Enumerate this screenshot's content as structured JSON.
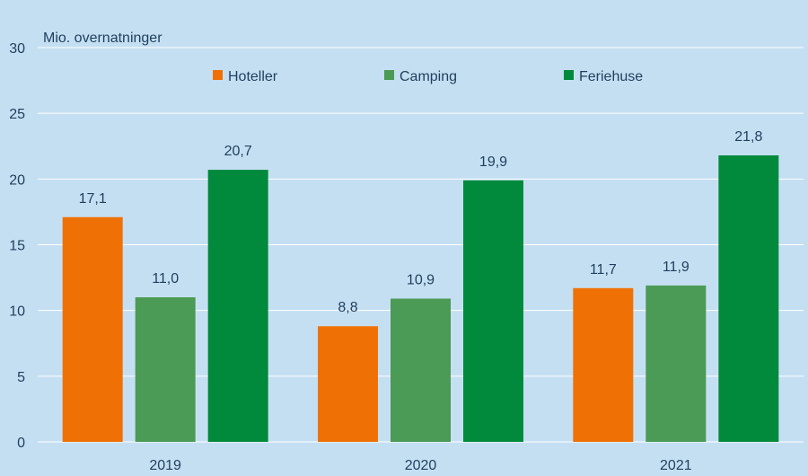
{
  "chart_data": {
    "type": "bar",
    "title": "",
    "ylabel": "Mio. overnatninger",
    "xlabel": "",
    "categories": [
      "2019",
      "2020",
      "2021"
    ],
    "ylim": [
      0,
      30
    ],
    "yticks": [
      0,
      5,
      10,
      15,
      20,
      25,
      30
    ],
    "grid": true,
    "legend_position": "top",
    "series": [
      {
        "name": "Hoteller",
        "color": "#ef7106",
        "values": [
          17.1,
          8.8,
          11.7
        ],
        "labels": [
          "17,1",
          "8,8",
          "11,7"
        ]
      },
      {
        "name": "Camping",
        "color": "#4b9a55",
        "values": [
          11.0,
          10.9,
          11.9
        ],
        "labels": [
          "11,0",
          "10,9",
          "11,9"
        ]
      },
      {
        "name": "Feriehuse",
        "color": "#018a3c",
        "values": [
          20.7,
          19.9,
          21.8
        ],
        "labels": [
          "20,7",
          "19,9",
          "21,8"
        ]
      }
    ],
    "background_color": "#c5dff2",
    "grid_color": "#ffffff"
  }
}
